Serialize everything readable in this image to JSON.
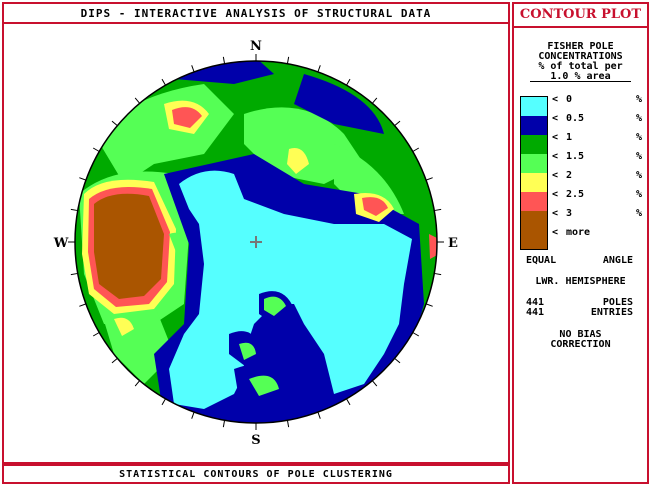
{
  "window": {
    "title": "DIPS - INTERACTIVE ANALYSIS OF STRUCTURAL DATA",
    "footer": "STATISTICAL CONTOURS OF POLE CLUSTERING"
  },
  "side": {
    "header": "CONTOUR PLOT",
    "heading1": "FISHER POLE",
    "heading2": "CONCENTRATIONS",
    "heading3": "% of total per",
    "heading4": "1.0 % area",
    "legend": [
      {
        "lt": "<",
        "value": "0",
        "pct": "%",
        "color": "#55ffff"
      },
      {
        "lt": "<",
        "value": "0.5",
        "pct": "%",
        "color": "#0000aa"
      },
      {
        "lt": "<",
        "value": "1",
        "pct": "%",
        "color": "#00aa00"
      },
      {
        "lt": "<",
        "value": "1.5",
        "pct": "%",
        "color": "#55ff55"
      },
      {
        "lt": "<",
        "value": "2",
        "pct": "%",
        "color": "#ffff55"
      },
      {
        "lt": "<",
        "value": "2.5",
        "pct": "%",
        "color": "#ff5555"
      },
      {
        "lt": "<",
        "value": "3",
        "pct": "%",
        "color": "#aa5500"
      },
      {
        "lt": "<",
        "value": "more",
        "pct": "",
        "color": "#aa5500"
      }
    ],
    "projection_a": "EQUAL",
    "projection_b": "ANGLE",
    "hemisphere": "LWR. HEMISPHERE",
    "poles_count": "441",
    "poles_label": "POLES",
    "entries_count": "441",
    "entries_label": "ENTRIES",
    "bias1": "NO BIAS",
    "bias2": "CORRECTION"
  },
  "stereonet": {
    "north": "N",
    "south": "S",
    "east": "E",
    "west": "W",
    "colors": {
      "cyan": "#55ffff",
      "blue": "#0000aa",
      "green": "#00aa00",
      "lightgreen": "#55ff55",
      "yellow": "#ffff55",
      "red": "#ff5555",
      "brown": "#aa5500"
    }
  }
}
